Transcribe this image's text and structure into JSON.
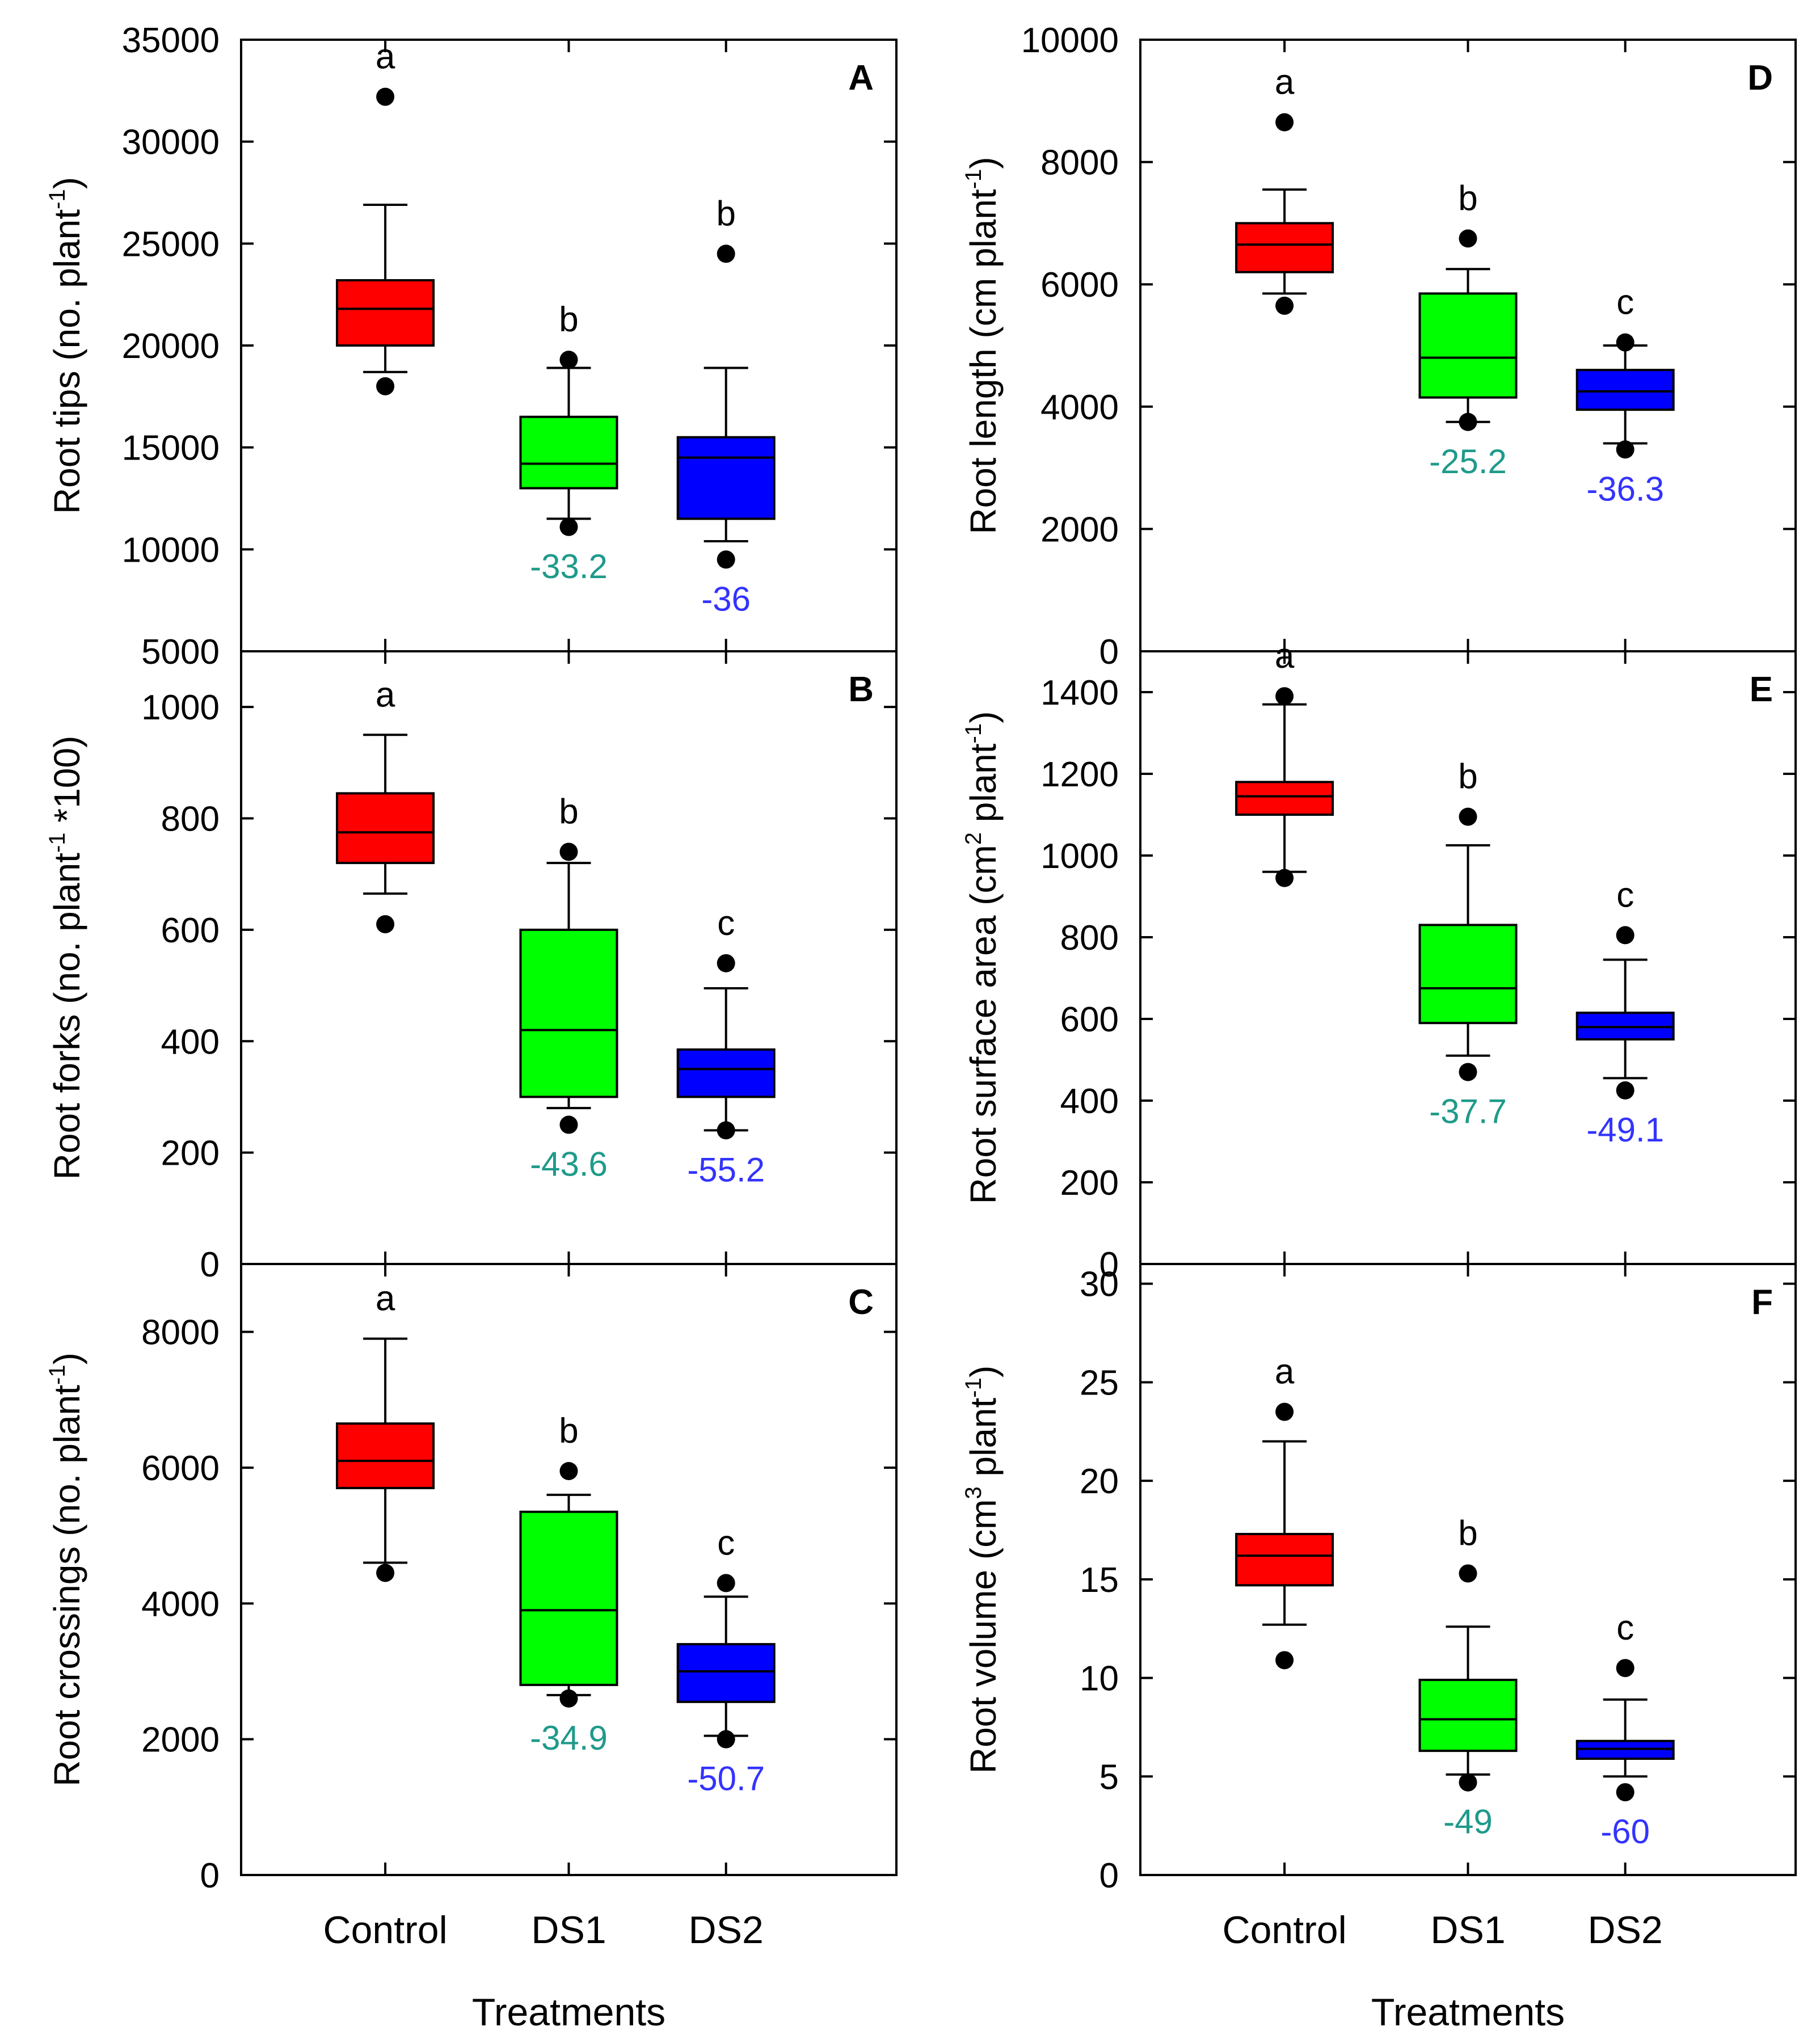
{
  "chart_data": [
    {
      "type": "box",
      "panel": "A",
      "ylabel": {
        "main": "Root tips (no. plant",
        "sup": "-1",
        "tail": ")"
      },
      "ylim": [
        5000,
        35000
      ],
      "yticks": [
        5000,
        10000,
        15000,
        20000,
        25000,
        30000,
        35000
      ],
      "categories": [
        "Control",
        "DS1",
        "DS2"
      ],
      "boxes": [
        {
          "category": "Control",
          "whisker_low": 18700,
          "q1": 20000,
          "median": 21800,
          "q3": 23200,
          "whisker_high": 26900,
          "outliers": [
            18000,
            32200
          ],
          "letter": "a",
          "color": "#ff0000"
        },
        {
          "category": "DS1",
          "whisker_low": 11500,
          "q1": 13000,
          "median": 14200,
          "q3": 16500,
          "whisker_high": 18900,
          "outliers": [
            11100,
            19300
          ],
          "letter": "b",
          "change": "-33.2",
          "change_color": "#1f9a8a",
          "color": "#00ff00"
        },
        {
          "category": "DS2",
          "whisker_low": 10400,
          "q1": 11500,
          "median": 14500,
          "q3": 15500,
          "whisker_high": 18900,
          "outliers": [
            9500,
            24500
          ],
          "letter": "b",
          "change": "-36",
          "change_color": "#3333ff",
          "color": "#0000ff"
        }
      ]
    },
    {
      "type": "box",
      "panel": "B",
      "ylabel": {
        "main": "Root forks (no. plant",
        "sup": "-1",
        "tail": " *100)"
      },
      "ylim": [
        0,
        1100
      ],
      "yticks": [
        0,
        200,
        400,
        600,
        800,
        1000
      ],
      "categories": [
        "Control",
        "DS1",
        "DS2"
      ],
      "boxes": [
        {
          "category": "Control",
          "whisker_low": 665,
          "q1": 720,
          "median": 775,
          "q3": 845,
          "whisker_high": 950,
          "outliers": [
            610
          ],
          "letter": "a",
          "color": "#ff0000"
        },
        {
          "category": "DS1",
          "whisker_low": 280,
          "q1": 300,
          "median": 420,
          "q3": 600,
          "whisker_high": 720,
          "outliers": [
            250,
            740
          ],
          "letter": "b",
          "change": "-43.6",
          "change_color": "#1f9a8a",
          "color": "#00ff00"
        },
        {
          "category": "DS2",
          "whisker_low": 240,
          "q1": 300,
          "median": 350,
          "q3": 385,
          "whisker_high": 495,
          "outliers": [
            240,
            540
          ],
          "letter": "c",
          "change": "-55.2",
          "change_color": "#3333ff",
          "color": "#0000ff"
        }
      ]
    },
    {
      "type": "box",
      "panel": "C",
      "ylabel": {
        "main": "Root crossings (no. plant",
        "sup": "-1",
        "tail": ")"
      },
      "ylim": [
        0,
        9000
      ],
      "yticks": [
        0,
        2000,
        4000,
        6000,
        8000
      ],
      "categories": [
        "Control",
        "DS1",
        "DS2"
      ],
      "xlabel": "Treatments",
      "boxes": [
        {
          "category": "Control",
          "whisker_low": 4600,
          "q1": 5700,
          "median": 6100,
          "q3": 6650,
          "whisker_high": 7900,
          "outliers": [
            4450
          ],
          "letter": "a",
          "color": "#ff0000"
        },
        {
          "category": "DS1",
          "whisker_low": 2650,
          "q1": 2800,
          "median": 3900,
          "q3": 5350,
          "whisker_high": 5600,
          "outliers": [
            2600,
            5950
          ],
          "letter": "b",
          "change": "-34.9",
          "change_color": "#1f9a8a",
          "color": "#00ff00"
        },
        {
          "category": "DS2",
          "whisker_low": 2050,
          "q1": 2550,
          "median": 3000,
          "q3": 3400,
          "whisker_high": 4100,
          "outliers": [
            2000,
            4300
          ],
          "letter": "c",
          "change": "-50.7",
          "change_color": "#3333ff",
          "color": "#0000ff"
        }
      ]
    },
    {
      "type": "box",
      "panel": "D",
      "ylabel": {
        "main": "Root length (cm plant",
        "sup": "-1",
        "tail": ")"
      },
      "ylim": [
        0,
        10000
      ],
      "yticks": [
        0,
        2000,
        4000,
        6000,
        8000,
        10000
      ],
      "categories": [
        "Control",
        "DS1",
        "DS2"
      ],
      "boxes": [
        {
          "category": "Control",
          "whisker_low": 5850,
          "q1": 6200,
          "median": 6650,
          "q3": 7000,
          "whisker_high": 7550,
          "outliers": [
            5650,
            8650
          ],
          "letter": "a",
          "color": "#ff0000"
        },
        {
          "category": "DS1",
          "whisker_low": 3750,
          "q1": 4150,
          "median": 4800,
          "q3": 5850,
          "whisker_high": 6250,
          "outliers": [
            3750,
            6750
          ],
          "letter": "b",
          "change": "-25.2",
          "change_color": "#1f9a8a",
          "color": "#00ff00"
        },
        {
          "category": "DS2",
          "whisker_low": 3400,
          "q1": 3950,
          "median": 4250,
          "q3": 4600,
          "whisker_high": 5000,
          "outliers": [
            3300,
            5050
          ],
          "letter": "c",
          "change": "-36.3",
          "change_color": "#3333ff",
          "color": "#0000ff"
        }
      ]
    },
    {
      "type": "box",
      "panel": "E",
      "ylabel": {
        "main": "Root surface area (cm",
        "sup": "2",
        "mid": " plant",
        "sup2": "-1",
        "tail": ")"
      },
      "ylim": [
        0,
        1500
      ],
      "yticks": [
        0,
        200,
        400,
        600,
        800,
        1000,
        1200,
        1400
      ],
      "categories": [
        "Control",
        "DS1",
        "DS2"
      ],
      "boxes": [
        {
          "category": "Control",
          "whisker_low": 960,
          "q1": 1100,
          "median": 1145,
          "q3": 1180,
          "whisker_high": 1370,
          "outliers": [
            945,
            1390
          ],
          "letter": "a",
          "color": "#ff0000"
        },
        {
          "category": "DS1",
          "whisker_low": 510,
          "q1": 590,
          "median": 675,
          "q3": 830,
          "whisker_high": 1025,
          "outliers": [
            470,
            1095
          ],
          "letter": "b",
          "change": "-37.7",
          "change_color": "#1f9a8a",
          "color": "#00ff00"
        },
        {
          "category": "DS2",
          "whisker_low": 455,
          "q1": 550,
          "median": 580,
          "q3": 615,
          "whisker_high": 745,
          "outliers": [
            425,
            805
          ],
          "letter": "c",
          "change": "-49.1",
          "change_color": "#3333ff",
          "color": "#0000ff"
        }
      ]
    },
    {
      "type": "box",
      "panel": "F",
      "ylabel": {
        "main": "Root volume (cm",
        "sup": "3",
        "mid": " plant",
        "sup2": "-1",
        "tail": ")"
      },
      "ylim": [
        0,
        31
      ],
      "yticks": [
        0,
        5,
        10,
        15,
        20,
        25,
        30
      ],
      "categories": [
        "Control",
        "DS1",
        "DS2"
      ],
      "xlabel": "Treatments",
      "boxes": [
        {
          "category": "Control",
          "whisker_low": 12.7,
          "q1": 14.7,
          "median": 16.2,
          "q3": 17.3,
          "whisker_high": 22.0,
          "outliers": [
            10.9,
            23.5
          ],
          "letter": "a",
          "color": "#ff0000"
        },
        {
          "category": "DS1",
          "whisker_low": 5.1,
          "q1": 6.3,
          "median": 7.9,
          "q3": 9.9,
          "whisker_high": 12.6,
          "outliers": [
            4.7,
            15.3
          ],
          "letter": "b",
          "change": "-49",
          "change_color": "#1f9a8a",
          "color": "#00ff00"
        },
        {
          "category": "DS2",
          "whisker_low": 5.0,
          "q1": 5.9,
          "median": 6.4,
          "q3": 6.8,
          "whisker_high": 8.9,
          "outliers": [
            4.2,
            10.5
          ],
          "letter": "c",
          "change": "-60",
          "change_color": "#3333ff",
          "color": "#0000ff"
        }
      ]
    }
  ]
}
